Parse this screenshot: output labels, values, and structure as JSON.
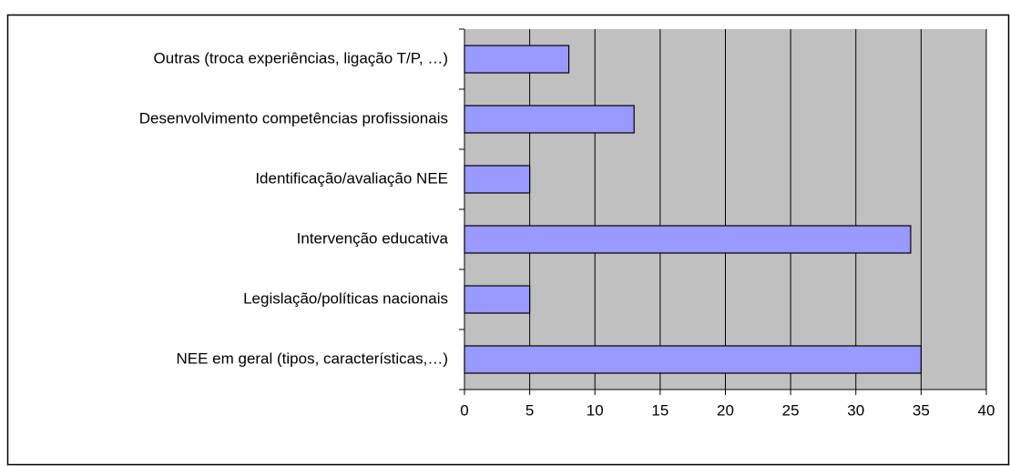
{
  "chart_data": {
    "type": "barh",
    "categories": [
      "Outras (troca experiências, ligação T/P, …)",
      "Desenvolvimento competências profissionais",
      "Identificação/avaliação NEE",
      "Intervenção educativa",
      "Legislação/políticas nacionais",
      "NEE em geral (tipos, características,…)"
    ],
    "values": [
      8,
      13,
      5,
      34.2,
      5,
      35
    ],
    "color": "#9999ff",
    "xlim": [
      0,
      40
    ],
    "xticks": [
      0,
      5,
      10,
      15,
      20,
      25,
      30,
      35,
      40
    ],
    "grid": true
  }
}
